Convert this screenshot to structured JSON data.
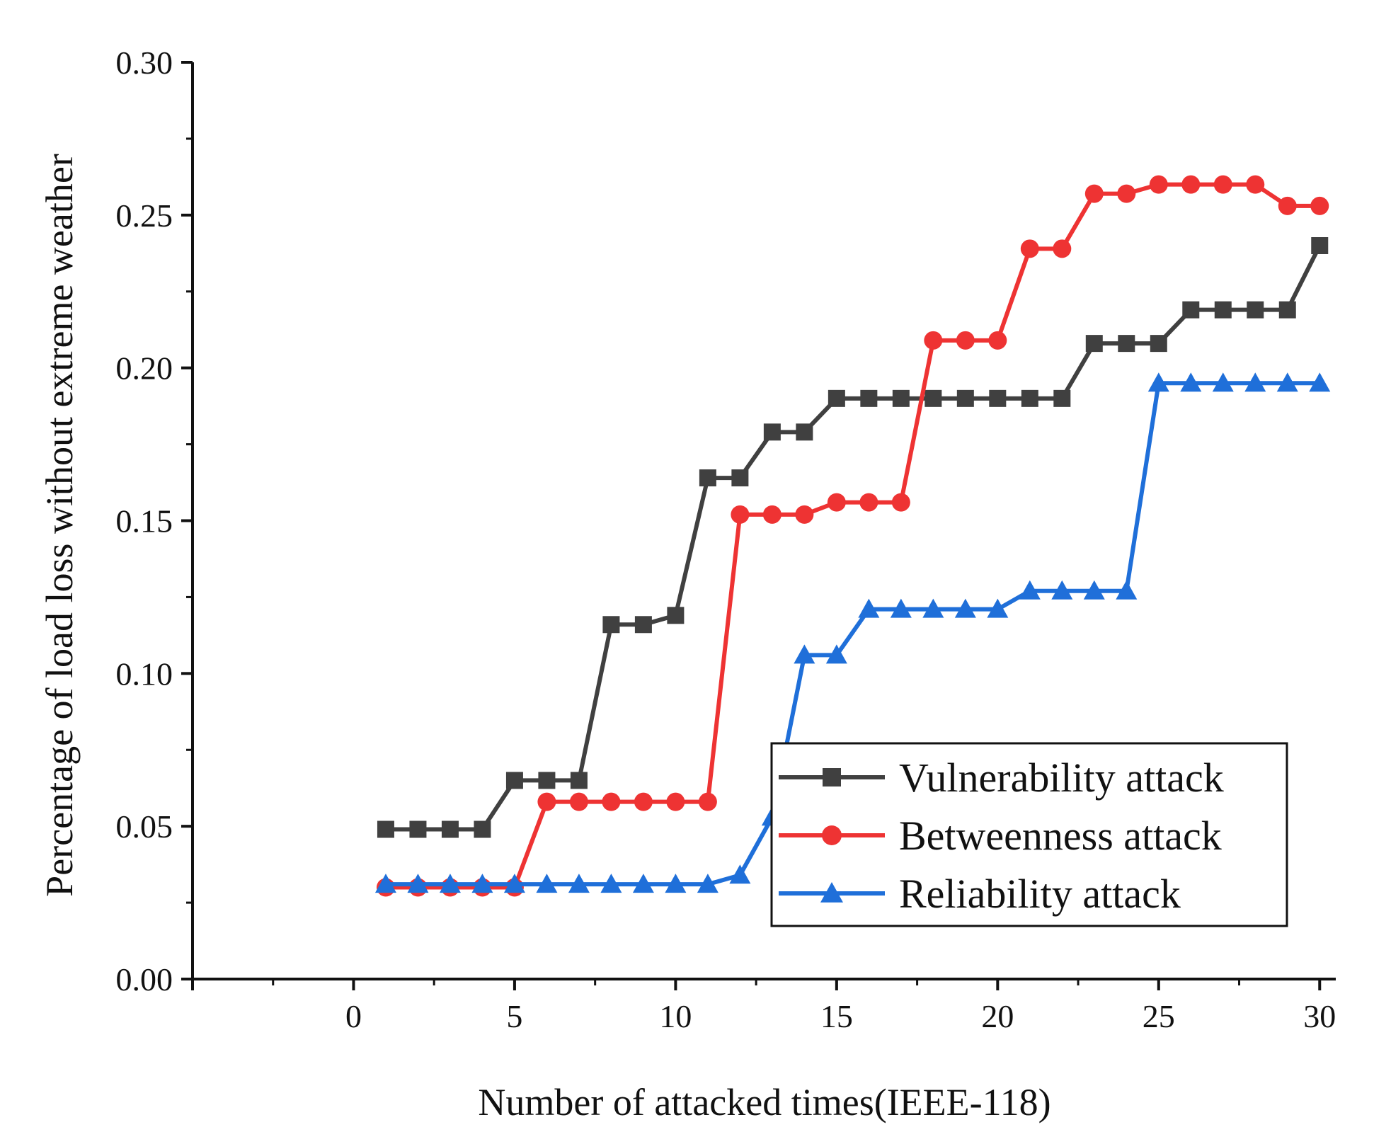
{
  "chart_data": {
    "type": "line",
    "title": "",
    "xlabel": "Number of attacked times(IEEE-118)",
    "ylabel": "Percentage of load loss without extreme weather",
    "xlim": [
      -5,
      30.5
    ],
    "ylim": [
      0,
      0.3
    ],
    "xticks": [
      0,
      5,
      10,
      15,
      20,
      25,
      30
    ],
    "xtick_labels": [
      "0",
      "5",
      "10",
      "15",
      "20",
      "25",
      "30"
    ],
    "yticks": [
      0,
      0.05,
      0.1,
      0.15,
      0.2,
      0.25,
      0.3
    ],
    "ytick_labels": [
      "0.00",
      "0.05",
      "0.10",
      "0.15",
      "0.20",
      "0.25",
      "0.30"
    ],
    "grid": false,
    "legend_position": "bottom-right",
    "x": [
      1,
      2,
      3,
      4,
      5,
      6,
      7,
      8,
      9,
      10,
      11,
      12,
      13,
      14,
      15,
      16,
      17,
      18,
      19,
      20,
      21,
      22,
      23,
      24,
      25,
      26,
      27,
      28,
      29,
      30
    ],
    "series": [
      {
        "name": "Vulnerability attack",
        "color": "#404040",
        "marker": "square",
        "values": [
          0.049,
          0.049,
          0.049,
          0.049,
          0.065,
          0.065,
          0.065,
          0.116,
          0.116,
          0.119,
          0.164,
          0.164,
          0.179,
          0.179,
          0.19,
          0.19,
          0.19,
          0.19,
          0.19,
          0.19,
          0.19,
          0.19,
          0.208,
          0.208,
          0.208,
          0.219,
          0.219,
          0.219,
          0.219,
          0.24
        ]
      },
      {
        "name": "Betweenness attack",
        "color": "#ee3333",
        "marker": "circle",
        "values": [
          0.03,
          0.03,
          0.03,
          0.03,
          0.03,
          0.058,
          0.058,
          0.058,
          0.058,
          0.058,
          0.058,
          0.152,
          0.152,
          0.152,
          0.156,
          0.156,
          0.156,
          0.209,
          0.209,
          0.209,
          0.239,
          0.239,
          0.257,
          0.257,
          0.26,
          0.26,
          0.26,
          0.26,
          0.253,
          0.253
        ]
      },
      {
        "name": "Reliability attack",
        "color": "#1f6fd9",
        "marker": "triangle",
        "values": [
          0.031,
          0.031,
          0.031,
          0.031,
          0.031,
          0.031,
          0.031,
          0.031,
          0.031,
          0.031,
          0.031,
          0.034,
          0.053,
          0.106,
          0.106,
          0.121,
          0.121,
          0.121,
          0.121,
          0.121,
          0.127,
          0.127,
          0.127,
          0.127,
          0.195,
          0.195,
          0.195,
          0.195,
          0.195,
          0.195
        ]
      }
    ]
  }
}
